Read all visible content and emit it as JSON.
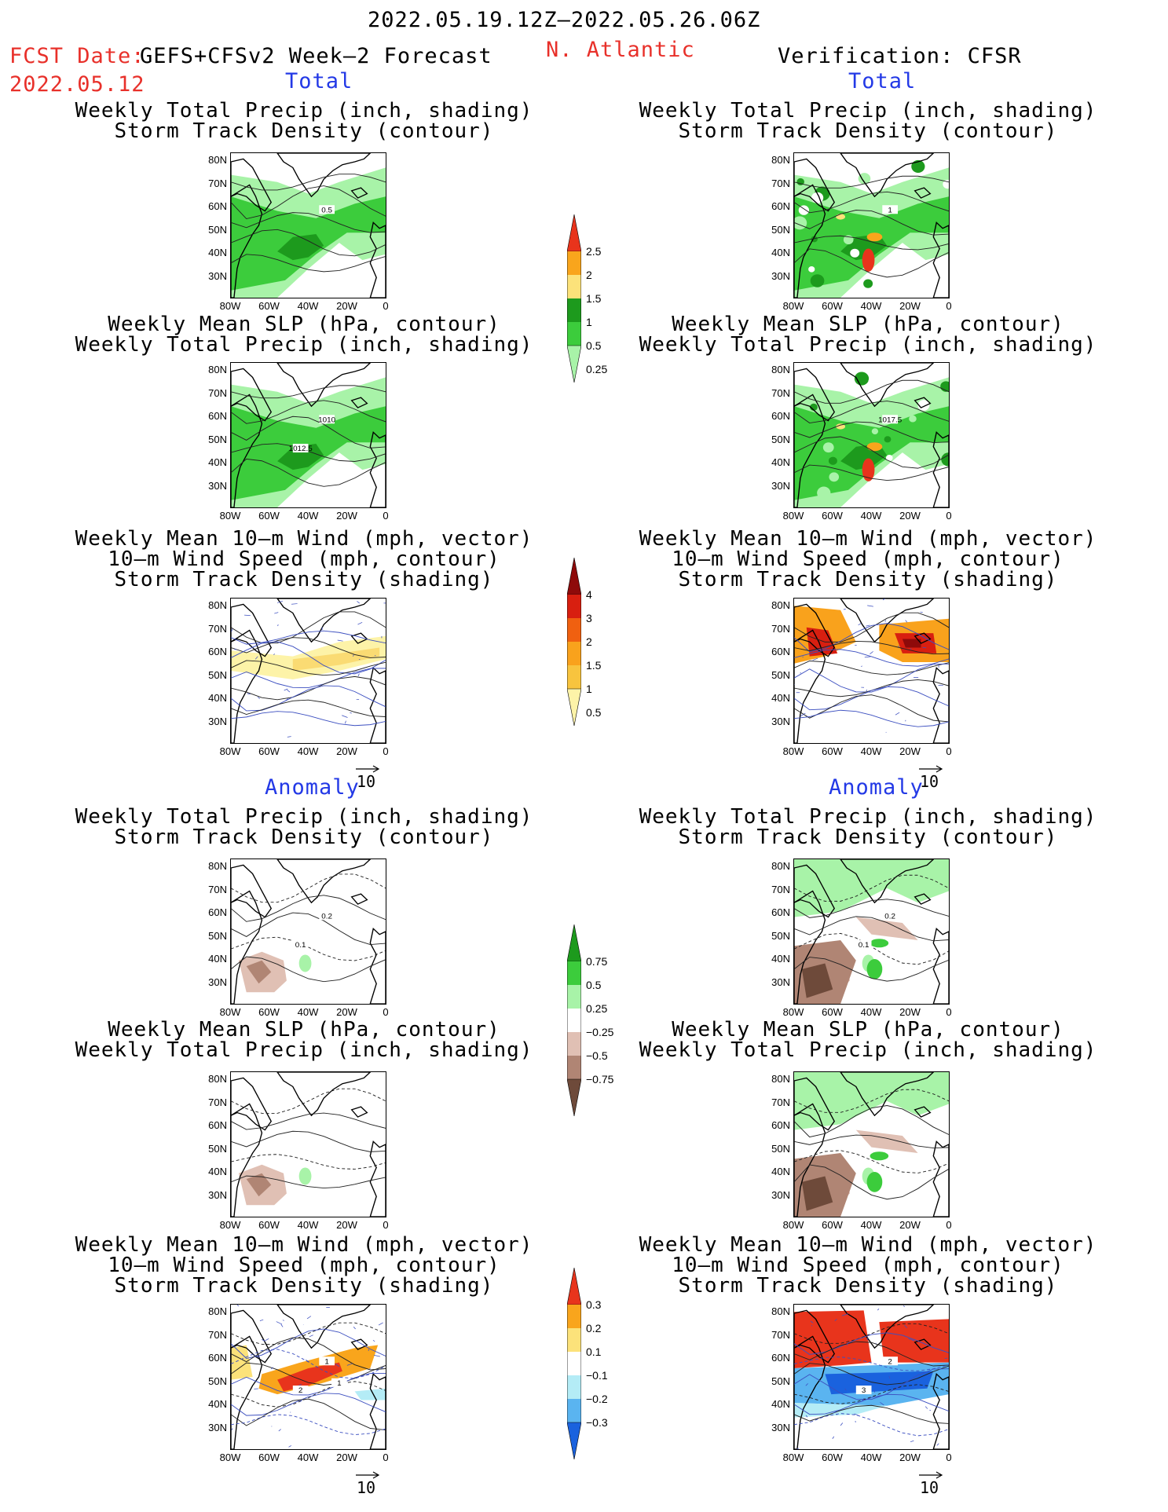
{
  "header": {
    "period": "2022.05.19.12Z–2022.05.26.06Z",
    "fcst_label": "FCST Date:",
    "fcst_model": "GEFS+CFSv2 Week–2 Forecast",
    "fcst_date": "2022.05.12",
    "region": "N. Atlantic",
    "verification": "Verification: CFSR"
  },
  "sections": {
    "total": "Total",
    "anomaly": "Anomaly"
  },
  "panel_titles": {
    "precip_track": [
      "Weekly Total Precip (inch, shading)",
      "Storm Track Density (contour)"
    ],
    "slp_precip": [
      "Weekly Mean SLP (hPa, contour)",
      "Weekly Total Precip (inch, shading)"
    ],
    "wind_track": [
      "Weekly Mean 10–m Wind (mph, vector)",
      "10–m Wind Speed (mph, contour)",
      "Storm Track Density (shading)"
    ]
  },
  "axes": {
    "lat_ticks": [
      "80N",
      "70N",
      "60N",
      "50N",
      "40N",
      "30N"
    ],
    "lon_ticks": [
      "80W",
      "60W",
      "40W",
      "20W",
      "0"
    ]
  },
  "vector_ref": "10",
  "contour_labels": {
    "fc_total_precip_track": [
      "0.5"
    ],
    "fc_total_slp": [
      "1010",
      "1012.5"
    ],
    "ver_total_precip_track": [
      "1"
    ],
    "ver_total_slp": [
      "1017.5"
    ],
    "fc_anom_precip_track": [
      "0.2",
      "0.1"
    ],
    "ver_anom_precip_track": [
      "0.2",
      "0.1"
    ],
    "fc_anom_wind": [
      "1",
      "2",
      "1"
    ],
    "ver_anom_wind": [
      "2",
      "3"
    ]
  },
  "colorbars": {
    "total_precip": {
      "labels": [
        "2.5",
        "2",
        "1.5",
        "1",
        "0.5",
        "0.25"
      ],
      "colors": [
        "#e8341c",
        "#f9a51c",
        "#fce27a",
        "#1d9a1d",
        "#3ccc3c",
        "#a8f3a8"
      ]
    },
    "total_track": {
      "labels": [
        "4",
        "3",
        "2",
        "1.5",
        "1",
        "0.5"
      ],
      "colors": [
        "#8e0a0a",
        "#d81f10",
        "#f06010",
        "#f9a21c",
        "#f8c43e",
        "#fdf3a8"
      ]
    },
    "anom_precip": {
      "labels": [
        "0.75",
        "0.5",
        "0.25",
        "−0.25",
        "−0.5",
        "−0.75"
      ],
      "colors": [
        "#1d9a1d",
        "#3ccc3c",
        "#a8f3a8",
        "#ffffff",
        "#e0c0b4",
        "#b08574",
        "#6e4a3a"
      ]
    },
    "anom_track": {
      "labels": [
        "0.3",
        "0.2",
        "0.1",
        "−0.1",
        "−0.2",
        "−0.3"
      ],
      "colors": [
        "#e8341c",
        "#f9a51c",
        "#fce27a",
        "#ffffff",
        "#b4ecf6",
        "#5ab4f0",
        "#1a62de"
      ]
    }
  }
}
